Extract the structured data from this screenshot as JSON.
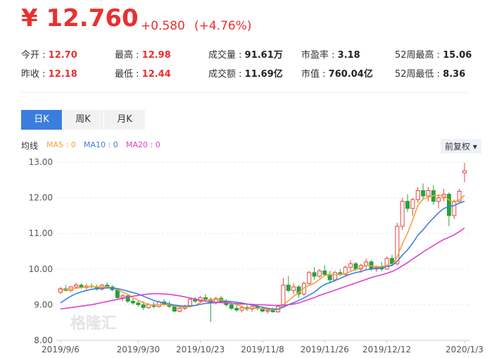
{
  "header": {
    "price": "¥ 12.760",
    "change": "+0.580",
    "change_pct": "(+4.76%)",
    "stats": [
      [
        {
          "label": "今开 : ",
          "value": "12.70"
        },
        {
          "label": "最高 : ",
          "value": "12.98"
        },
        {
          "label": "成交量 : ",
          "value": "91.61万"
        },
        {
          "label": "市盈率 : ",
          "value": "3.18"
        },
        {
          "label": "52周最高 : ",
          "value": "15.06"
        }
      ],
      [
        {
          "label": "昨收 : ",
          "value": "12.18"
        },
        {
          "label": "最低 : ",
          "value": "12.44"
        },
        {
          "label": "成交额 : ",
          "value": "11.69亿"
        },
        {
          "label": "市值 : ",
          "value": "760.04亿"
        },
        {
          "label": "52周最低 : ",
          "value": "8.36"
        }
      ]
    ]
  },
  "tabs": [
    "日K",
    "周K",
    "月K"
  ],
  "adjust": "前复权",
  "watermark": "格隆汇",
  "chart_data": {
    "type": "candlestick",
    "ma_label": "均线",
    "up_color": "#e8433f",
    "down_color": "#27a23a",
    "grid": true,
    "ylim": [
      8,
      13
    ],
    "yticks": [
      {
        "value": 8,
        "label": "8.00"
      },
      {
        "value": 9,
        "label": "9.00"
      },
      {
        "value": 10,
        "label": "10.00"
      },
      {
        "value": 11,
        "label": "11.00"
      },
      {
        "value": 12,
        "label": "12.00"
      },
      {
        "value": 13,
        "label": "13.00"
      }
    ],
    "categories": [
      "2019/9/6",
      null,
      null,
      null,
      null,
      null,
      null,
      null,
      null,
      null,
      null,
      null,
      null,
      null,
      null,
      "2019/9/30",
      null,
      null,
      null,
      null,
      null,
      null,
      null,
      null,
      null,
      null,
      null,
      "2019/10/23",
      null,
      null,
      null,
      null,
      null,
      null,
      null,
      null,
      null,
      null,
      null,
      "2019/11/8",
      null,
      null,
      null,
      null,
      null,
      null,
      null,
      null,
      null,
      null,
      null,
      "2019/11/26",
      null,
      null,
      null,
      null,
      null,
      null,
      null,
      null,
      null,
      null,
      null,
      "2019/12/12",
      null,
      null,
      null,
      null,
      null,
      null,
      null,
      null,
      null,
      null,
      null,
      null,
      null,
      null,
      "2020/1/3"
    ],
    "open": [
      9.35,
      9.45,
      9.4,
      9.5,
      9.55,
      9.48,
      9.52,
      9.5,
      9.44,
      9.55,
      9.5,
      9.42,
      9.2,
      9.25,
      9.1,
      9.05,
      9.0,
      8.92,
      9.0,
      8.95,
      9.08,
      9.02,
      8.95,
      8.82,
      8.9,
      8.95,
      9.15,
      9.1,
      9.2,
      9.15,
      9.05,
      9.18,
      9.1,
      9.0,
      8.9,
      8.85,
      8.92,
      8.88,
      8.95,
      8.9,
      8.82,
      8.85,
      8.8,
      8.95,
      9.55,
      9.4,
      9.5,
      9.3,
      9.6,
      9.9,
      9.8,
      9.95,
      9.85,
      9.7,
      9.9,
      9.85,
      10.05,
      10.15,
      10.0,
      10.1,
      10.2,
      10.0,
      10.05,
      10.0,
      10.3,
      10.15,
      11.2,
      11.9,
      11.7,
      11.95,
      12.2,
      12.05,
      12.2,
      11.9,
      12.0,
      12.1,
      11.5,
      11.9,
      12.7
    ],
    "high": [
      9.5,
      9.55,
      9.52,
      9.62,
      9.6,
      9.58,
      9.6,
      9.56,
      9.58,
      9.62,
      9.55,
      9.46,
      9.3,
      9.28,
      9.18,
      9.12,
      9.1,
      9.05,
      9.08,
      9.12,
      9.15,
      9.1,
      9.0,
      8.95,
      9.0,
      9.2,
      9.22,
      9.25,
      9.3,
      9.2,
      9.22,
      9.25,
      9.15,
      9.05,
      9.0,
      8.95,
      9.0,
      8.98,
      9.02,
      8.95,
      8.9,
      8.92,
      9.0,
      9.75,
      9.8,
      9.6,
      9.55,
      9.65,
      9.95,
      10.05,
      10.0,
      10.1,
      9.95,
      9.95,
      10.0,
      10.1,
      10.25,
      10.2,
      10.15,
      10.3,
      10.25,
      10.1,
      10.2,
      10.35,
      10.4,
      11.3,
      12.0,
      12.1,
      12.0,
      12.3,
      12.4,
      12.3,
      12.35,
      12.1,
      12.25,
      12.15,
      11.95,
      12.25,
      12.98
    ],
    "low": [
      9.3,
      9.38,
      9.36,
      9.45,
      9.45,
      9.42,
      9.46,
      9.4,
      9.4,
      9.48,
      9.38,
      9.15,
      9.1,
      9.05,
      9.0,
      8.95,
      8.85,
      8.88,
      8.9,
      8.92,
      8.98,
      8.92,
      8.78,
      8.78,
      8.85,
      8.92,
      9.05,
      9.05,
      9.1,
      8.52,
      9.0,
      9.05,
      8.95,
      8.85,
      8.8,
      8.78,
      8.82,
      8.8,
      8.85,
      8.78,
      8.75,
      8.78,
      8.78,
      8.92,
      9.35,
      9.3,
      9.2,
      9.25,
      9.55,
      9.7,
      9.75,
      9.8,
      9.6,
      9.65,
      9.8,
      9.8,
      9.95,
      9.95,
      9.9,
      10.0,
      9.95,
      9.92,
      9.95,
      9.98,
      10.1,
      10.1,
      11.1,
      11.6,
      11.5,
      11.85,
      11.95,
      11.9,
      11.8,
      11.7,
      11.9,
      11.2,
      11.4,
      11.85,
      12.44
    ],
    "close": [
      9.45,
      9.4,
      9.5,
      9.55,
      9.48,
      9.52,
      9.5,
      9.44,
      9.55,
      9.5,
      9.42,
      9.2,
      9.25,
      9.1,
      9.05,
      9.0,
      8.92,
      9.0,
      8.95,
      9.08,
      9.02,
      8.95,
      8.82,
      8.9,
      8.95,
      9.15,
      9.1,
      9.2,
      9.15,
      9.05,
      9.18,
      9.1,
      9.0,
      8.9,
      8.85,
      8.92,
      8.88,
      8.95,
      8.9,
      8.82,
      8.85,
      8.8,
      8.95,
      9.55,
      9.4,
      9.5,
      9.3,
      9.6,
      9.9,
      9.8,
      9.95,
      9.85,
      9.7,
      9.9,
      9.85,
      10.05,
      10.15,
      10.0,
      10.1,
      10.2,
      10.0,
      10.05,
      10.0,
      10.3,
      10.15,
      11.2,
      11.9,
      11.7,
      11.95,
      12.2,
      12.05,
      12.2,
      11.9,
      12.0,
      12.1,
      11.5,
      11.9,
      12.18,
      12.76
    ],
    "series": [
      {
        "name": "MA5 : 0",
        "color": "#f5a13c",
        "values": [
          9.42,
          9.43,
          9.44,
          9.46,
          9.48,
          9.49,
          9.51,
          9.5,
          9.5,
          9.5,
          9.48,
          9.42,
          9.36,
          9.29,
          9.2,
          9.12,
          9.06,
          9.01,
          8.98,
          9.0,
          9.0,
          9.0,
          8.96,
          8.94,
          8.93,
          8.95,
          8.98,
          9.06,
          9.14,
          9.13,
          9.14,
          9.14,
          9.1,
          9.05,
          9.01,
          8.95,
          8.89,
          8.9,
          8.9,
          8.89,
          8.88,
          8.86,
          8.86,
          9.0,
          9.11,
          9.24,
          9.34,
          9.47,
          9.54,
          9.6,
          9.71,
          9.82,
          9.84,
          9.84,
          9.85,
          9.87,
          9.93,
          9.99,
          10.03,
          10.1,
          10.09,
          10.07,
          10.07,
          10.11,
          10.1,
          10.34,
          10.71,
          11.01,
          11.38,
          11.79,
          11.96,
          12.02,
          12.06,
          12.07,
          12.05,
          11.94,
          11.88,
          11.94,
          12.07
        ]
      },
      {
        "name": "MA10 : 0",
        "color": "#3d7fe0",
        "values": [
          9.05,
          9.15,
          9.24,
          9.31,
          9.36,
          9.4,
          9.43,
          9.45,
          9.46,
          9.47,
          9.47,
          9.45,
          9.42,
          9.38,
          9.34,
          9.3,
          9.24,
          9.18,
          9.12,
          9.08,
          9.05,
          9.02,
          8.99,
          8.97,
          8.96,
          8.97,
          8.98,
          9.01,
          9.04,
          9.05,
          9.06,
          9.08,
          9.1,
          9.09,
          9.07,
          9.05,
          9.02,
          8.99,
          8.96,
          8.93,
          8.9,
          8.88,
          8.88,
          8.93,
          9.0,
          9.06,
          9.12,
          9.19,
          9.27,
          9.35,
          9.47,
          9.57,
          9.62,
          9.68,
          9.74,
          9.8,
          9.86,
          9.9,
          9.93,
          9.98,
          10.0,
          10.02,
          10.04,
          10.07,
          10.1,
          10.22,
          10.39,
          10.54,
          10.73,
          10.95,
          11.1,
          11.28,
          11.43,
          11.58,
          11.7,
          11.75,
          11.78,
          11.85,
          11.9
        ]
      },
      {
        "name": "MA20 : 0",
        "color": "#e040c8",
        "values": [
          8.88,
          8.9,
          8.92,
          8.94,
          8.96,
          8.98,
          9.0,
          9.03,
          9.06,
          9.09,
          9.12,
          9.15,
          9.18,
          9.21,
          9.24,
          9.26,
          9.28,
          9.3,
          9.31,
          9.31,
          9.3,
          9.29,
          9.27,
          9.25,
          9.22,
          9.19,
          9.16,
          9.13,
          9.1,
          9.08,
          9.07,
          9.06,
          9.05,
          9.04,
          9.03,
          9.02,
          9.02,
          9.01,
          9.0,
          9.0,
          8.99,
          8.98,
          8.98,
          8.99,
          9.0,
          9.02,
          9.05,
          9.1,
          9.15,
          9.2,
          9.26,
          9.31,
          9.36,
          9.41,
          9.46,
          9.51,
          9.56,
          9.61,
          9.66,
          9.71,
          9.76,
          9.8,
          9.84,
          9.88,
          9.93,
          10.0,
          10.09,
          10.18,
          10.28,
          10.38,
          10.48,
          10.57,
          10.66,
          10.75,
          10.83,
          10.89,
          10.96,
          11.05,
          11.15
        ]
      }
    ]
  }
}
